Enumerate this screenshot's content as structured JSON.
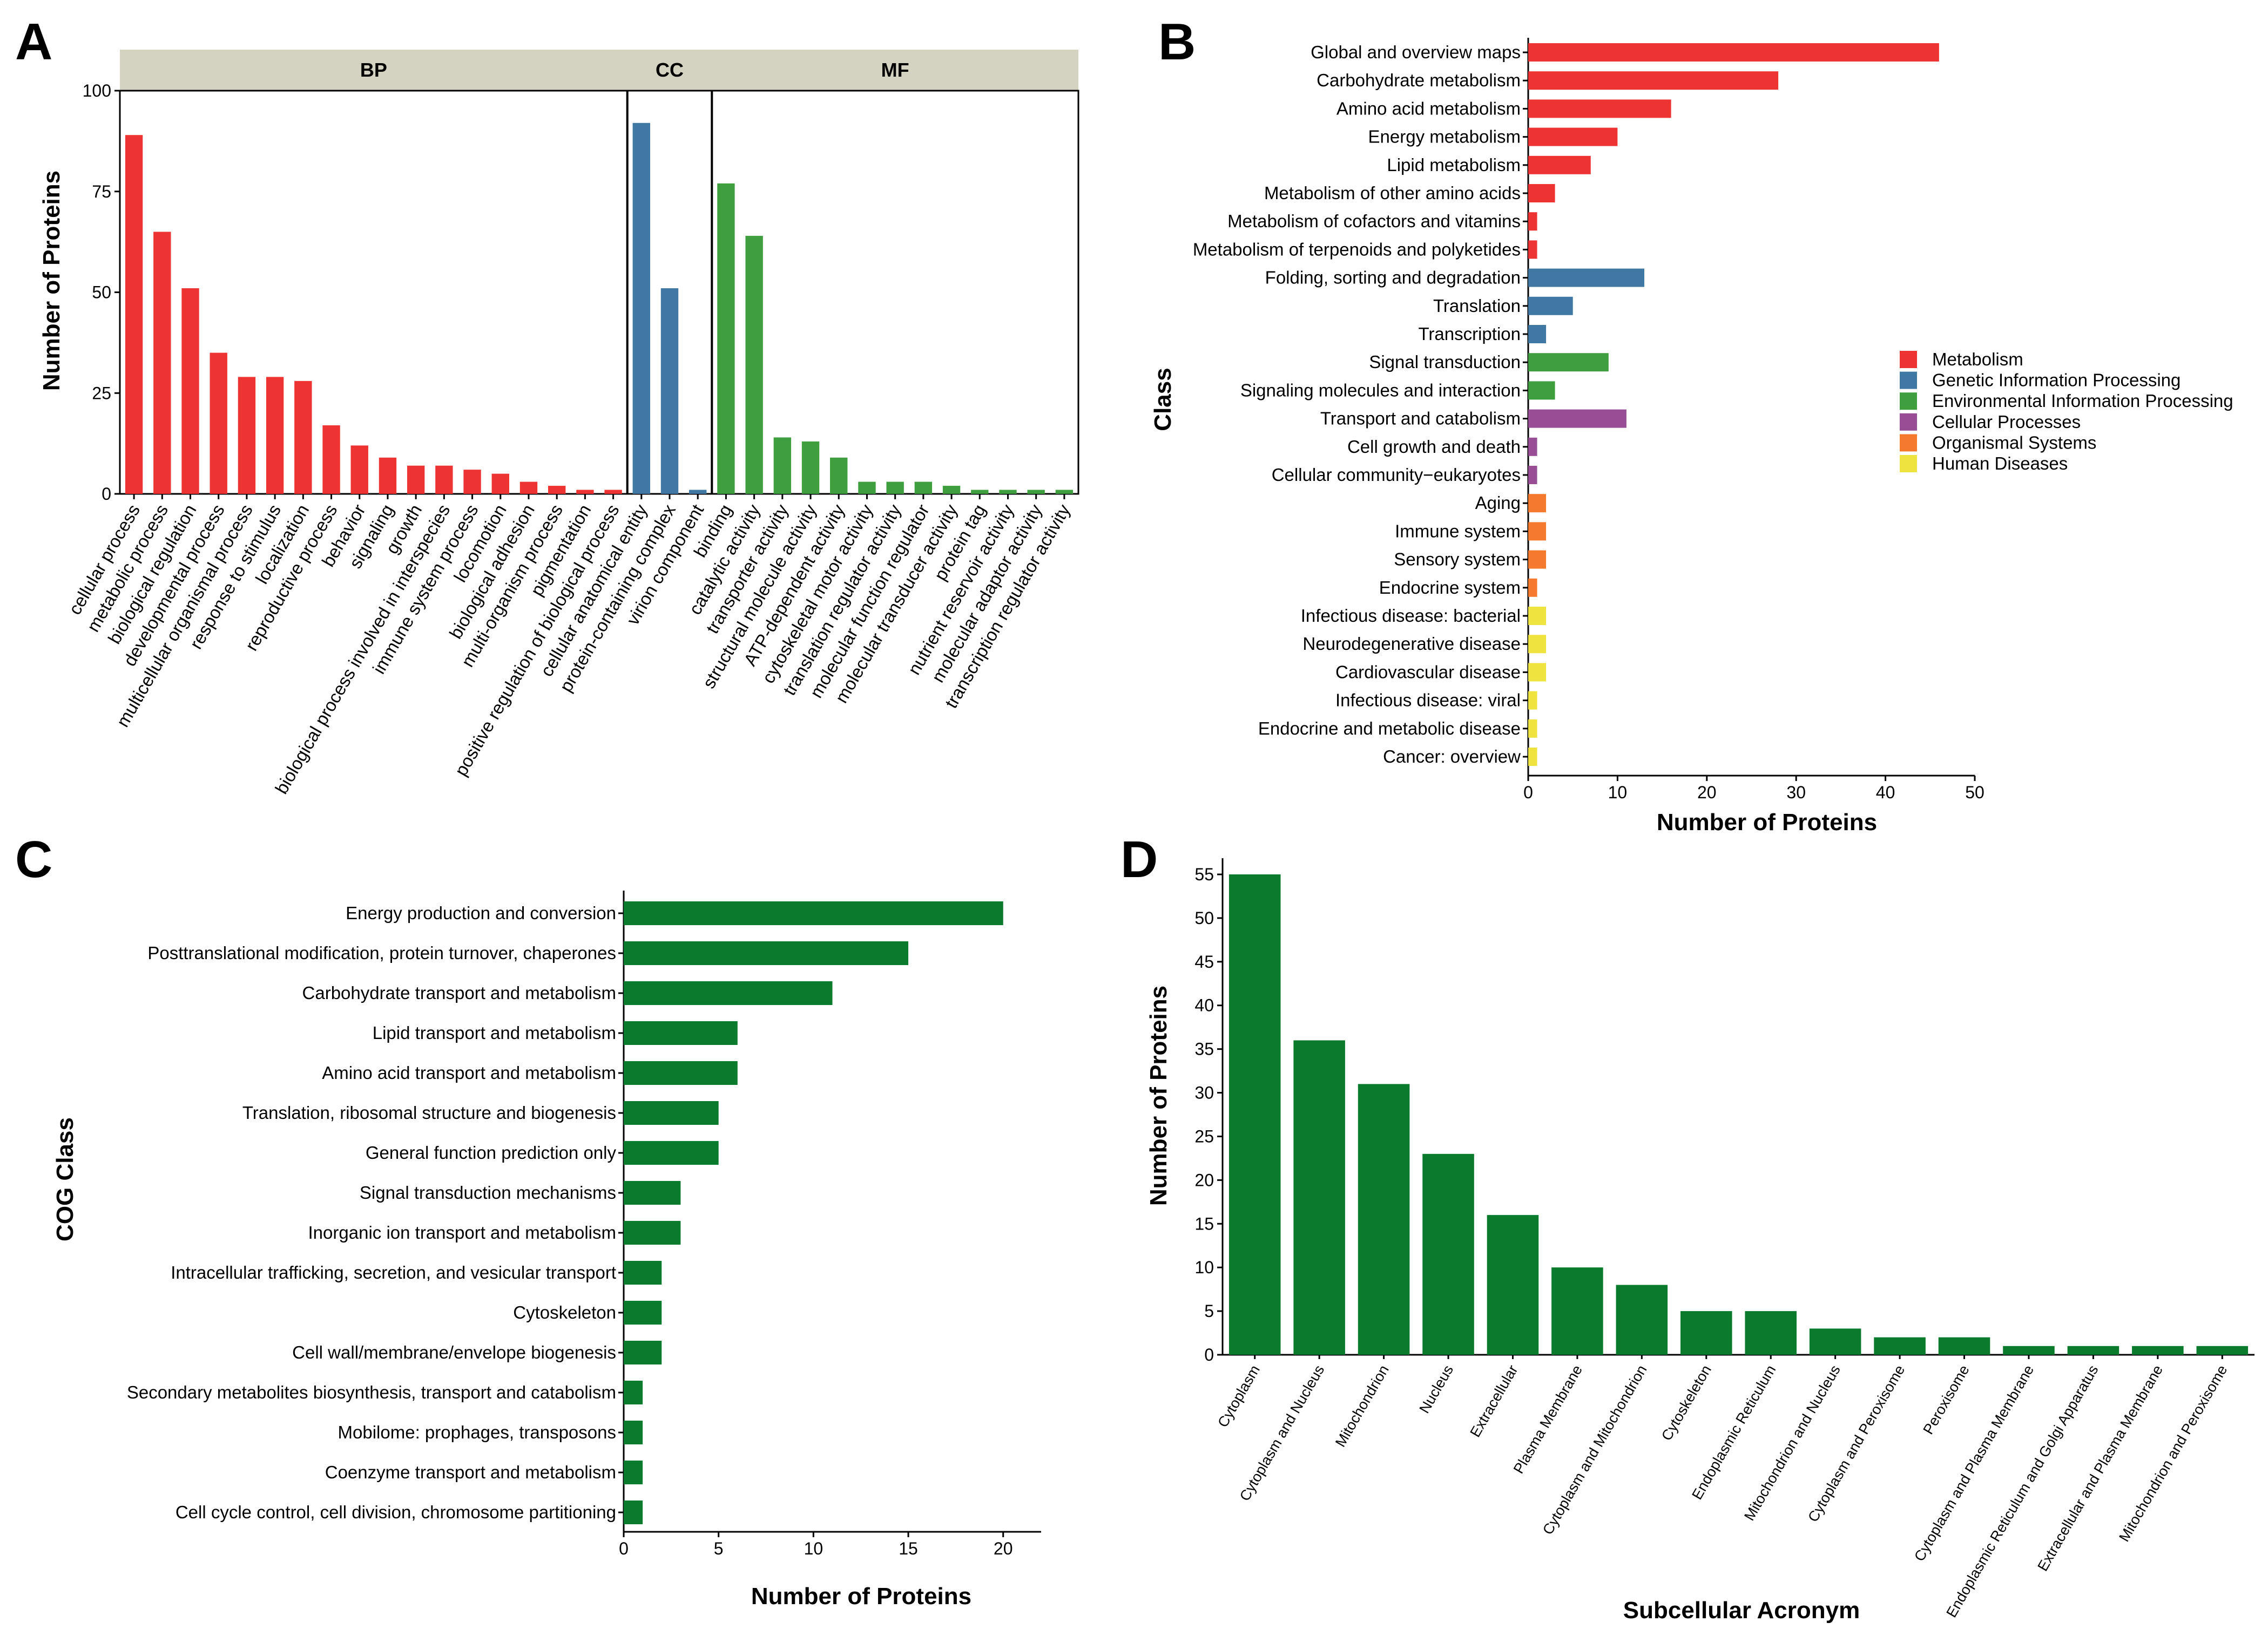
{
  "panels": {
    "a": "A",
    "b": "B",
    "c": "C",
    "d": "D"
  },
  "colors": {
    "metabolism": "#ee3333",
    "genetic": "#3f79a3",
    "environmental": "#3f9f3f",
    "cellular": "#984e95",
    "organismal": "#f57a2e",
    "human": "#efe33f",
    "cog": "#0a7a2c",
    "strip": "#d4d3c1"
  },
  "chart_data": [
    {
      "id": "A",
      "type": "bar",
      "ylabel": "Number of Proteins",
      "ylim": [
        0,
        100
      ],
      "yticks": [
        0,
        25,
        50,
        75,
        100
      ],
      "groups": [
        {
          "name": "BP",
          "color": "#ee3333",
          "categories": [
            "cellular process",
            "metabolic process",
            "biological regulation",
            "developmental process",
            "multicellular organismal process",
            "response to stimulus",
            "localization",
            "reproductive process",
            "behavior",
            "signaling",
            "growth",
            "biological process involved in interspecies",
            "immune system process",
            "locomotion",
            "biological adhesion",
            "multi-organism process",
            "pigmentation",
            "positive regulation of biological process"
          ],
          "values": [
            89,
            65,
            51,
            35,
            29,
            29,
            28,
            17,
            12,
            9,
            7,
            7,
            6,
            5,
            3,
            2,
            1,
            1
          ]
        },
        {
          "name": "CC",
          "color": "#3f79a3",
          "categories": [
            "cellular anatomical entity",
            "protein-containing complex",
            "virion component"
          ],
          "values": [
            92,
            51,
            1
          ]
        },
        {
          "name": "MF",
          "color": "#3f9f3f",
          "categories": [
            "binding",
            "catalytic activity",
            "transporter activity",
            "structural molecule activity",
            "ATP-dependent activity",
            "cytoskeletal motor activity",
            "translation regulator activity",
            "molecular function regulator",
            "molecular transducer activity",
            "protein tag",
            "nutrient reservoir activity",
            "molecular adaptor activity",
            "transcription regulator activity"
          ],
          "values": [
            77,
            64,
            14,
            13,
            9,
            3,
            3,
            3,
            2,
            1,
            1,
            1,
            1
          ]
        }
      ]
    },
    {
      "id": "B",
      "type": "bar",
      "orientation": "horizontal",
      "xlabel": "Number of Proteins",
      "ylabel": "Class",
      "xlim": [
        0,
        50
      ],
      "xticks": [
        0,
        10,
        20,
        30,
        40,
        50
      ],
      "categories": [
        "Global and overview maps",
        "Carbohydrate metabolism",
        "Amino acid metabolism",
        "Energy metabolism",
        "Lipid metabolism",
        "Metabolism of other amino acids",
        "Metabolism of cofactors and vitamins",
        "Metabolism of terpenoids and polyketides",
        "Folding, sorting and degradation",
        "Translation",
        "Transcription",
        "Signal transduction",
        "Signaling molecules and interaction",
        "Transport and catabolism",
        "Cell growth and death",
        "Cellular community−eukaryotes",
        "Aging",
        "Immune system",
        "Sensory system",
        "Endocrine system",
        "Infectious disease: bacterial",
        "Neurodegenerative disease",
        "Cardiovascular disease",
        "Infectious disease: viral",
        "Endocrine and metabolic disease",
        "Cancer: overview"
      ],
      "values": [
        46,
        28,
        16,
        10,
        7,
        3,
        1,
        1,
        13,
        5,
        2,
        9,
        3,
        11,
        1,
        1,
        2,
        2,
        2,
        1,
        2,
        2,
        2,
        1,
        1,
        1
      ],
      "series_of_category": [
        0,
        0,
        0,
        0,
        0,
        0,
        0,
        0,
        1,
        1,
        1,
        2,
        2,
        3,
        3,
        3,
        4,
        4,
        4,
        4,
        5,
        5,
        5,
        5,
        5,
        5
      ],
      "legend": [
        {
          "name": "Metabolism",
          "color": "#ee3333"
        },
        {
          "name": "Genetic Information Processing",
          "color": "#3f79a3"
        },
        {
          "name": "Environmental Information Processing",
          "color": "#3f9f3f"
        },
        {
          "name": "Cellular Processes",
          "color": "#984e95"
        },
        {
          "name": "Organismal Systems",
          "color": "#f57a2e"
        },
        {
          "name": "Human Diseases",
          "color": "#efe33f"
        }
      ],
      "legend_position": "right"
    },
    {
      "id": "C",
      "type": "bar",
      "orientation": "horizontal",
      "xlabel": "Number of Proteins",
      "ylabel": "COG Class",
      "xlim": [
        0,
        22
      ],
      "xticks": [
        0,
        5,
        10,
        15,
        20
      ],
      "categories": [
        "Energy production and conversion",
        "Posttranslational modification, protein turnover, chaperones",
        "Carbohydrate transport and metabolism",
        "Lipid transport and metabolism",
        "Amino acid transport and metabolism",
        "Translation, ribosomal structure and biogenesis",
        "General function prediction only",
        "Signal transduction mechanisms",
        "Inorganic ion transport and metabolism",
        "Intracellular trafficking, secretion, and vesicular transport",
        "Cytoskeleton",
        "Cell wall/membrane/envelope biogenesis",
        "Secondary metabolites biosynthesis, transport and catabolism",
        "Mobilome: prophages, transposons",
        "Coenzyme transport and metabolism",
        "Cell cycle control, cell division, chromosome partitioning"
      ],
      "values": [
        20,
        15,
        11,
        6,
        6,
        5,
        5,
        3,
        3,
        2,
        2,
        2,
        1,
        1,
        1,
        1
      ],
      "color": "#0a7a2c"
    },
    {
      "id": "D",
      "type": "bar",
      "xlabel": "Subcellular Acronym",
      "ylabel": "Number of Proteins",
      "ylim": [
        0,
        55
      ],
      "yticks": [
        0,
        5,
        10,
        15,
        20,
        25,
        30,
        35,
        40,
        45,
        50,
        55
      ],
      "categories": [
        "Cytoplasm",
        "Cytoplasm and Nucleus",
        "Mitochondrion",
        "Nucleus",
        "Extracellular",
        "Plasma Membrane",
        "Cytoplasm and Mitochondrion",
        "Cytoskeleton",
        "Endoplasmic Reticulum",
        "Mitochondrion and Nucleus",
        "Cytoplasm and Peroxisome",
        "Peroxisome",
        "Cytoplasm and Plasma Membrane",
        "Endoplasmic Reticulum and Golgi Apparatus",
        "Extracellular and Plasma Membrane",
        "Mitochondrion and Peroxisome"
      ],
      "values": [
        55,
        36,
        31,
        23,
        16,
        10,
        8,
        5,
        5,
        3,
        2,
        2,
        1,
        1,
        1,
        1
      ],
      "color": "#0a7a2c"
    }
  ]
}
